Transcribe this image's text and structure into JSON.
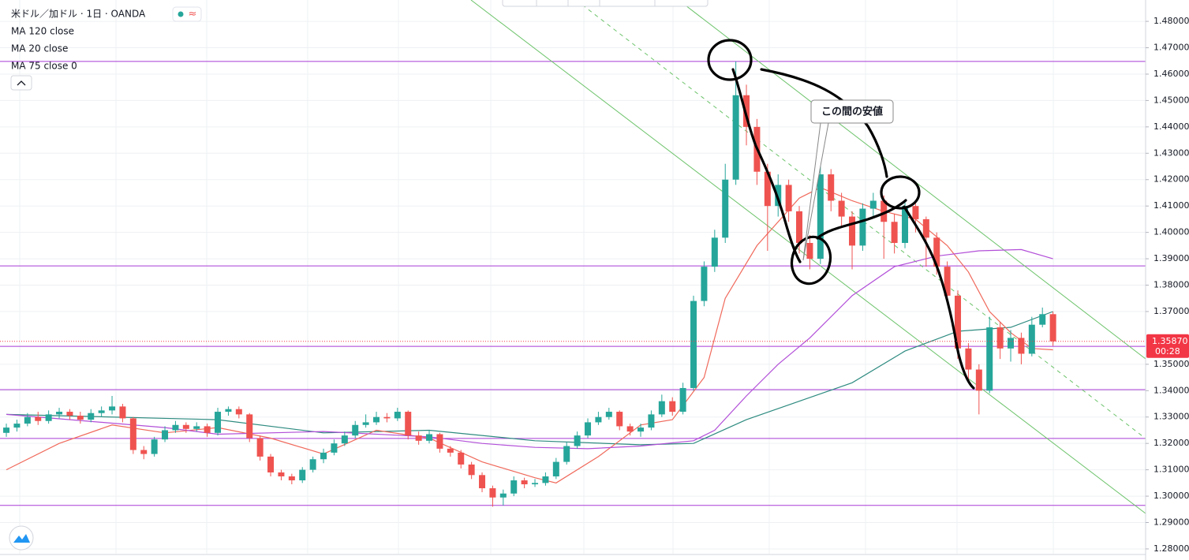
{
  "chart_data": {
    "type": "candlestick",
    "title": "米ドル／加ドル · 1日 · OANDA",
    "up_color": "#26a69a",
    "down_color": "#ef5350",
    "open": [
      1.324,
      1.326,
      1.3275,
      1.33,
      1.3285,
      1.331,
      1.332,
      1.3305,
      1.329,
      1.3315,
      1.3325,
      1.334,
      1.3295,
      1.3175,
      1.316,
      1.3215,
      1.325,
      1.327,
      1.3255,
      1.3265,
      1.324,
      1.332,
      1.333,
      1.331,
      1.322,
      1.315,
      1.309,
      1.3075,
      1.306,
      1.31,
      1.314,
      1.3165,
      1.32,
      1.323,
      1.327,
      1.328,
      1.33,
      1.3295,
      1.332,
      1.323,
      1.321,
      1.3235,
      1.318,
      1.3165,
      1.312,
      1.308,
      1.303,
      1.2995,
      1.301,
      1.306,
      1.3045,
      1.305,
      1.3075,
      1.313,
      1.319,
      1.323,
      1.328,
      1.33,
      1.332,
      1.3265,
      1.3245,
      1.326,
      1.331,
      1.336,
      1.332,
      1.341,
      1.374,
      1.387,
      1.398,
      1.42,
      1.452,
      1.44,
      1.423,
      1.41,
      1.418,
      1.408,
      1.396,
      1.39,
      1.422,
      1.412,
      1.406,
      1.395,
      1.409,
      1.412,
      1.404,
      1.396,
      1.41,
      1.405,
      1.398,
      1.387,
      1.376,
      1.356,
      1.348,
      1.34,
      1.364,
      1.356,
      1.36,
      1.354,
      1.365,
      1.369
    ],
    "high": [
      1.3275,
      1.329,
      1.3315,
      1.332,
      1.3325,
      1.3335,
      1.333,
      1.332,
      1.333,
      1.334,
      1.338,
      1.335,
      1.33,
      1.319,
      1.3225,
      1.3265,
      1.3285,
      1.328,
      1.328,
      1.3275,
      1.3335,
      1.334,
      1.334,
      1.3315,
      1.323,
      1.316,
      1.31,
      1.3085,
      1.311,
      1.315,
      1.318,
      1.3215,
      1.3245,
      1.3285,
      1.331,
      1.332,
      1.3315,
      1.3335,
      1.3325,
      1.3245,
      1.325,
      1.324,
      1.319,
      1.3175,
      1.313,
      1.309,
      1.304,
      1.3025,
      1.3075,
      1.307,
      1.3065,
      1.309,
      1.3145,
      1.3205,
      1.3245,
      1.3295,
      1.332,
      1.3335,
      1.3325,
      1.3275,
      1.3275,
      1.3325,
      1.3385,
      1.3375,
      1.343,
      1.376,
      1.389,
      1.401,
      1.426,
      1.4648,
      1.456,
      1.443,
      1.426,
      1.422,
      1.42,
      1.41,
      1.399,
      1.426,
      1.424,
      1.415,
      1.408,
      1.411,
      1.415,
      1.414,
      1.407,
      1.412,
      1.411,
      1.406,
      1.4,
      1.389,
      1.378,
      1.358,
      1.35,
      1.368,
      1.366,
      1.363,
      1.362,
      1.368,
      1.3715,
      1.37
    ],
    "low": [
      1.3225,
      1.3245,
      1.3265,
      1.327,
      1.3275,
      1.3295,
      1.329,
      1.3275,
      1.328,
      1.33,
      1.331,
      1.328,
      1.316,
      1.314,
      1.315,
      1.3205,
      1.324,
      1.324,
      1.3245,
      1.3225,
      1.323,
      1.3305,
      1.3295,
      1.3205,
      1.3135,
      1.3075,
      1.306,
      1.3045,
      1.305,
      1.309,
      1.3125,
      1.3155,
      1.319,
      1.322,
      1.326,
      1.327,
      1.328,
      1.3285,
      1.3215,
      1.3195,
      1.32,
      1.3165,
      1.315,
      1.3105,
      1.3065,
      1.3015,
      1.296,
      1.2965,
      1.3,
      1.303,
      1.3035,
      1.304,
      1.3065,
      1.312,
      1.318,
      1.322,
      1.327,
      1.329,
      1.325,
      1.323,
      1.3225,
      1.325,
      1.33,
      1.3305,
      1.331,
      1.34,
      1.372,
      1.385,
      1.396,
      1.418,
      1.433,
      1.418,
      1.393,
      1.406,
      1.404,
      1.392,
      1.386,
      1.388,
      1.408,
      1.402,
      1.386,
      1.393,
      1.406,
      1.39,
      1.392,
      1.394,
      1.4,
      1.387,
      1.384,
      1.373,
      1.352,
      1.344,
      1.331,
      1.339,
      1.352,
      1.351,
      1.35,
      1.353,
      1.364,
      1.357
    ],
    "close": [
      1.326,
      1.3275,
      1.33,
      1.3285,
      1.331,
      1.332,
      1.3305,
      1.329,
      1.3315,
      1.3325,
      1.334,
      1.3295,
      1.3175,
      1.316,
      1.3215,
      1.325,
      1.327,
      1.3255,
      1.3265,
      1.324,
      1.332,
      1.333,
      1.331,
      1.322,
      1.315,
      1.309,
      1.3075,
      1.306,
      1.31,
      1.314,
      1.3165,
      1.32,
      1.323,
      1.327,
      1.328,
      1.33,
      1.3295,
      1.332,
      1.323,
      1.321,
      1.3235,
      1.318,
      1.3165,
      1.312,
      1.308,
      1.303,
      1.2995,
      1.301,
      1.306,
      1.3045,
      1.305,
      1.3075,
      1.313,
      1.319,
      1.323,
      1.328,
      1.33,
      1.332,
      1.3265,
      1.3245,
      1.326,
      1.331,
      1.336,
      1.332,
      1.341,
      1.374,
      1.387,
      1.398,
      1.42,
      1.452,
      1.44,
      1.423,
      1.41,
      1.418,
      1.408,
      1.396,
      1.39,
      1.422,
      1.412,
      1.406,
      1.395,
      1.409,
      1.412,
      1.404,
      1.396,
      1.41,
      1.405,
      1.398,
      1.387,
      1.376,
      1.356,
      1.348,
      1.34,
      1.364,
      1.356,
      1.36,
      1.354,
      1.365,
      1.369,
      1.3587
    ],
    "series": [
      {
        "name": "MA 120 close",
        "color": "#2e8b80",
        "x": [
          0,
          20,
          30,
          40,
          50,
          60,
          65,
          70,
          75,
          80,
          85,
          90,
          95,
          99
        ],
        "values": [
          1.331,
          1.329,
          1.324,
          1.325,
          1.321,
          1.3195,
          1.32,
          1.329,
          1.336,
          1.343,
          1.355,
          1.3625,
          1.364,
          1.37
        ]
      },
      {
        "name": "MA 20 close",
        "color": "#f0695b",
        "x": [
          0,
          5,
          10,
          15,
          20,
          25,
          30,
          35,
          40,
          45,
          50,
          52,
          56,
          60,
          63,
          66,
          68,
          71,
          75,
          77,
          80,
          83,
          86,
          89,
          91,
          93,
          95,
          97,
          99
        ],
        "values": [
          1.31,
          1.32,
          1.327,
          1.324,
          1.326,
          1.322,
          1.316,
          1.325,
          1.322,
          1.313,
          1.307,
          1.305,
          1.315,
          1.327,
          1.329,
          1.345,
          1.375,
          1.395,
          1.413,
          1.417,
          1.412,
          1.408,
          1.405,
          1.395,
          1.385,
          1.37,
          1.362,
          1.356,
          1.3555
        ]
      },
      {
        "name": "MA 75 close 0",
        "color": "#b24fd8",
        "x": [
          0,
          15,
          20,
          30,
          40,
          45,
          50,
          55,
          60,
          65,
          67,
          70,
          73,
          76,
          80,
          84,
          88,
          92,
          96,
          99
        ],
        "values": [
          1.331,
          1.326,
          1.3235,
          1.3245,
          1.3225,
          1.32,
          1.3185,
          1.318,
          1.319,
          1.321,
          1.325,
          1.338,
          1.35,
          1.36,
          1.376,
          1.387,
          1.391,
          1.393,
          1.3935,
          1.39
        ]
      }
    ],
    "horizontal_lines": {
      "color": "#a83bd6",
      "values": [
        1.4648,
        1.3873,
        1.3568,
        1.3404,
        1.3219,
        1.2965
      ]
    },
    "last_price": {
      "value": 1.3587,
      "label": "1.35870",
      "color": "#f23645"
    },
    "countdown": "00:28",
    "annotation": "この間の安値",
    "xlim": [
      -0.6,
      107.76
    ],
    "ylim": [
      1.2758,
      1.4881
    ],
    "yticks": [
      {
        "value": 1.28,
        "label": "1.28000"
      },
      {
        "value": 1.29,
        "label": "1.29000"
      },
      {
        "value": 1.3,
        "label": "1.30000"
      },
      {
        "value": 1.31,
        "label": "1.31000"
      },
      {
        "value": 1.32,
        "label": "1.32000"
      },
      {
        "value": 1.33,
        "label": "1.33000"
      },
      {
        "value": 1.34,
        "label": "1.34000"
      },
      {
        "value": 1.35,
        "label": "1.35000"
      },
      {
        "value": 1.37,
        "label": "1.37000"
      },
      {
        "value": 1.38,
        "label": "1.38000"
      },
      {
        "value": 1.39,
        "label": "1.39000"
      },
      {
        "value": 1.4,
        "label": "1.40000"
      },
      {
        "value": 1.41,
        "label": "1.41000"
      },
      {
        "value": 1.42,
        "label": "1.42000"
      },
      {
        "value": 1.43,
        "label": "1.43000"
      },
      {
        "value": 1.44,
        "label": "1.44000"
      },
      {
        "value": 1.45,
        "label": "1.45000"
      },
      {
        "value": 1.46,
        "label": "1.46000"
      },
      {
        "value": 1.47,
        "label": "1.47000"
      },
      {
        "value": 1.48,
        "label": "1.48000"
      }
    ],
    "grid": true
  }
}
